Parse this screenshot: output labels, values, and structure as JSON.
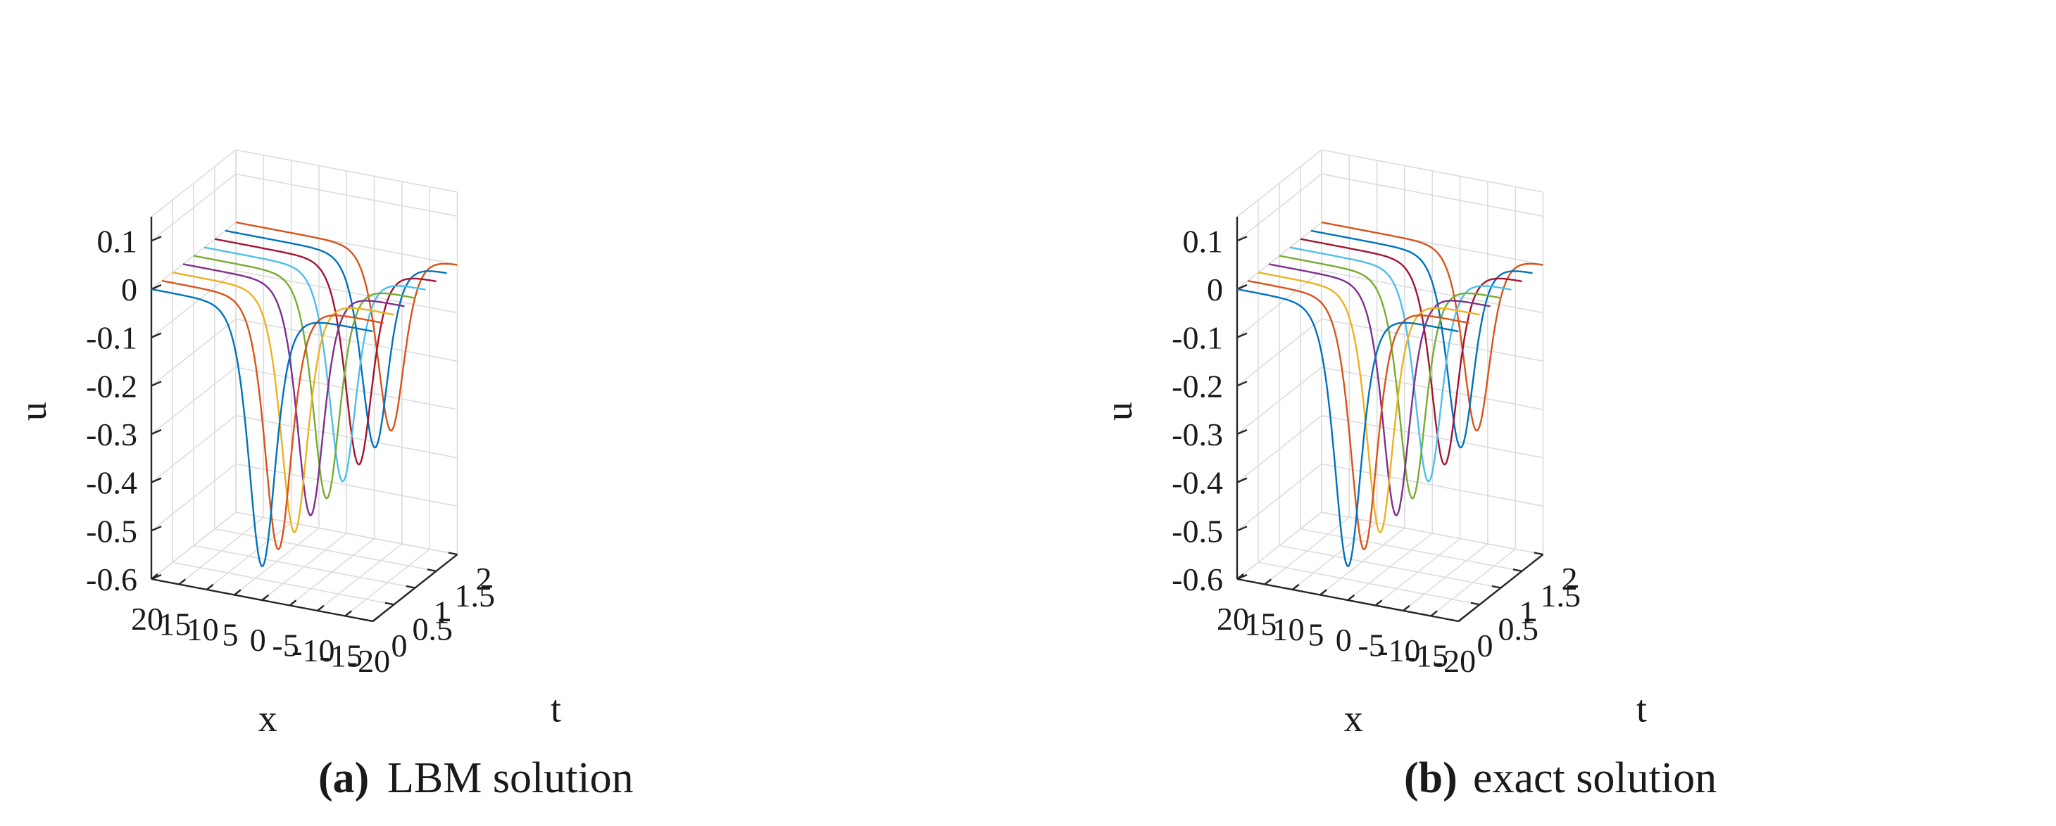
{
  "colors": [
    "#0072BD",
    "#D95319",
    "#EDB120",
    "#7E2F8E",
    "#77AC30",
    "#4DBEEE",
    "#A2142F",
    "#0072BD",
    "#D95319"
  ],
  "chart_data": [
    {
      "type": "surface-lines-3d",
      "caption_tag": "(a)",
      "caption_text": "LBM solution",
      "xlabel": "x",
      "ylabel": "t",
      "zlabel": "u",
      "xlim": [
        -20,
        20
      ],
      "ylim": [
        0,
        2
      ],
      "zlim": [
        -0.6,
        0.15
      ],
      "xticks": [
        "20",
        "15",
        "10",
        "5",
        "0",
        "-5",
        "-10",
        "-15",
        "-20"
      ],
      "xtick_values": [
        20,
        15,
        10,
        5,
        0,
        -5,
        -10,
        -15,
        -20
      ],
      "yticks": [
        "0",
        "0.5",
        "1",
        "1.5",
        "2"
      ],
      "ytick_values": [
        0,
        0.5,
        1,
        1.5,
        2
      ],
      "zticks": [
        "0.1",
        "0",
        "-0.1",
        "-0.2",
        "-0.3",
        "-0.4",
        "-0.5",
        "-0.6"
      ],
      "ztick_values": [
        0.1,
        0,
        -0.1,
        -0.2,
        -0.3,
        -0.4,
        -0.5,
        -0.6
      ],
      "series": [
        {
          "t": 0.0,
          "trough_x": 0.0,
          "min_u": -0.53,
          "tail_u": 0.0
        },
        {
          "t": 0.25,
          "trough_x": -1.0,
          "min_u": -0.51,
          "tail_u": 0.0
        },
        {
          "t": 0.5,
          "trough_x": -2.0,
          "min_u": -0.49,
          "tail_u": 0.0
        },
        {
          "t": 0.75,
          "trough_x": -3.0,
          "min_u": -0.47,
          "tail_u": 0.0
        },
        {
          "t": 1.0,
          "trough_x": -4.0,
          "min_u": -0.45,
          "tail_u": 0.0
        },
        {
          "t": 1.25,
          "trough_x": -5.0,
          "min_u": -0.43,
          "tail_u": 0.0
        },
        {
          "t": 1.5,
          "trough_x": -6.0,
          "min_u": -0.41,
          "tail_u": 0.0
        },
        {
          "t": 1.75,
          "trough_x": -7.0,
          "min_u": -0.39,
          "tail_u": 0.0
        },
        {
          "t": 2.0,
          "trough_x": -8.0,
          "min_u": -0.37,
          "tail_u": 0.0
        }
      ]
    },
    {
      "type": "surface-lines-3d",
      "caption_tag": "(b)",
      "caption_text": "exact solution",
      "xlabel": "x",
      "ylabel": "t",
      "zlabel": "u",
      "xlim": [
        -20,
        20
      ],
      "ylim": [
        0,
        2
      ],
      "zlim": [
        -0.6,
        0.15
      ],
      "xticks": [
        "20",
        "15",
        "10",
        "5",
        "0",
        "-5",
        "-10",
        "-15",
        "-20"
      ],
      "xtick_values": [
        20,
        15,
        10,
        5,
        0,
        -5,
        -10,
        -15,
        -20
      ],
      "yticks": [
        "0",
        "0.5",
        "1",
        "1.5",
        "2"
      ],
      "ytick_values": [
        0,
        0.5,
        1,
        1.5,
        2
      ],
      "zticks": [
        "0.1",
        "0",
        "-0.1",
        "-0.2",
        "-0.3",
        "-0.4",
        "-0.5",
        "-0.6"
      ],
      "ztick_values": [
        0.1,
        0,
        -0.1,
        -0.2,
        -0.3,
        -0.4,
        -0.5,
        -0.6
      ],
      "series": [
        {
          "t": 0.0,
          "trough_x": 0.0,
          "min_u": -0.53,
          "tail_u": 0.0
        },
        {
          "t": 0.25,
          "trough_x": -1.0,
          "min_u": -0.51,
          "tail_u": 0.0
        },
        {
          "t": 0.5,
          "trough_x": -2.0,
          "min_u": -0.49,
          "tail_u": 0.0
        },
        {
          "t": 0.75,
          "trough_x": -3.0,
          "min_u": -0.47,
          "tail_u": 0.0
        },
        {
          "t": 1.0,
          "trough_x": -4.0,
          "min_u": -0.45,
          "tail_u": 0.0
        },
        {
          "t": 1.25,
          "trough_x": -5.0,
          "min_u": -0.43,
          "tail_u": 0.0
        },
        {
          "t": 1.5,
          "trough_x": -6.0,
          "min_u": -0.41,
          "tail_u": 0.0
        },
        {
          "t": 1.75,
          "trough_x": -7.0,
          "min_u": -0.39,
          "tail_u": 0.0
        },
        {
          "t": 2.0,
          "trough_x": -8.0,
          "min_u": -0.37,
          "tail_u": 0.0
        }
      ]
    }
  ]
}
